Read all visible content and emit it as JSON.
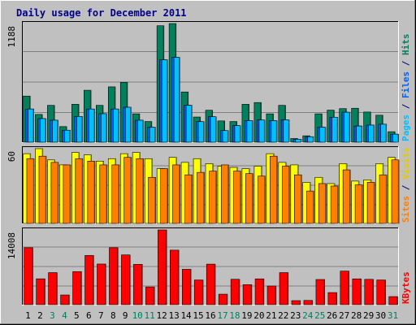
{
  "chart_data": {
    "type": "bar",
    "title": "Daily usage for December 2011",
    "days": [
      "1",
      "2",
      "3",
      "4",
      "5",
      "6",
      "7",
      "8",
      "9",
      "10",
      "11",
      "12",
      "13",
      "14",
      "15",
      "16",
      "17",
      "18",
      "19",
      "20",
      "21",
      "22",
      "23",
      "24",
      "25",
      "26",
      "27",
      "28",
      "29",
      "30",
      "31"
    ],
    "weekend_days": [
      "3",
      "4",
      "10",
      "11",
      "17",
      "18",
      "24",
      "25",
      "31"
    ],
    "grid": true,
    "panels": [
      {
        "id": "top",
        "max_label": "1188",
        "max": 1188,
        "side_label": [
          {
            "text": "Pages",
            "color": "#00c0ff"
          },
          {
            "text": " / ",
            "color": "#000080"
          },
          {
            "text": "Files",
            "color": "#0060ff"
          },
          {
            "text": " / ",
            "color": "#000080"
          },
          {
            "text": "Hits",
            "color": "#00805c"
          }
        ],
        "series": [
          {
            "name": "Hits",
            "color": "#00805c",
            "values": [
              462,
              278,
              369,
              156,
              380,
              520,
              369,
              554,
              600,
              284,
              207,
              1166,
              1188,
              503,
              252,
              320,
              213,
              207,
              380,
              397,
              284,
              369,
              37,
              64,
              284,
              321,
              336,
              340,
              302,
              270,
              105
            ]
          },
          {
            "name": "Files",
            "color": "#0060ff",
            "values": [
              332,
              236,
              220,
              120,
              258,
              332,
              285,
              332,
              350,
              220,
              150,
              825,
              850,
              370,
              206,
              255,
              116,
              166,
              216,
              222,
              216,
              224,
              30,
              55,
              150,
              250,
              300,
              162,
              171,
              180,
              80
            ]
          },
          {
            "name": "Pages",
            "color": "#00c0ff",
            "values": [
              332,
              236,
              220,
              120,
              258,
              332,
              285,
              332,
              350,
              220,
              150,
              825,
              850,
              370,
              206,
              255,
              116,
              166,
              216,
              222,
              216,
              224,
              30,
              55,
              150,
              250,
              300,
              162,
              171,
              180,
              80
            ]
          }
        ]
      },
      {
        "id": "middle",
        "max_label": "60",
        "max": 60,
        "side_label": [
          {
            "text": "Sites",
            "color": "#ff8000"
          },
          {
            "text": " / ",
            "color": "#000080"
          },
          {
            "text": "Visits",
            "color": "#e6c800"
          }
        ],
        "series": [
          {
            "name": "Visits",
            "color": "#ffff00",
            "values": [
              56,
              60,
              51,
              47,
              57,
              55,
              50,
              52,
              56,
              57,
              52,
              44,
              53,
              49,
              52,
              48,
              46,
              45,
              44,
              46,
              56,
              49,
              47,
              33,
              37,
              32,
              48,
              34,
              35,
              48,
              53
            ]
          },
          {
            "name": "Sites",
            "color": "#ff8000",
            "values": [
              52,
              54,
              49,
              47,
              52,
              50,
              47,
              47,
              53,
              52,
              37,
              44,
              47,
              39,
              41,
              42,
              47,
              42,
              40,
              38,
              54,
              46,
              39,
              26,
              32,
              30,
              43,
              31,
              33,
              39,
              51
            ]
          }
        ]
      },
      {
        "id": "bottom",
        "max_label": "14008",
        "max": 14008,
        "side_label": [
          {
            "text": "KBytes",
            "color": "#ff0000"
          }
        ],
        "series": [
          {
            "name": "KBytes",
            "color": "#ff0000",
            "values": [
              10680,
              4850,
              6010,
              1820,
              6200,
              9220,
              7620,
              10680,
              9330,
              7560,
              3330,
              14008,
              10220,
              6630,
              4630,
              7600,
              1970,
              4760,
              3750,
              4840,
              3500,
              6010,
              760,
              800,
              4720,
              2270,
              6290,
              4840,
              4750,
              4630,
              1520
            ]
          }
        ]
      }
    ]
  }
}
